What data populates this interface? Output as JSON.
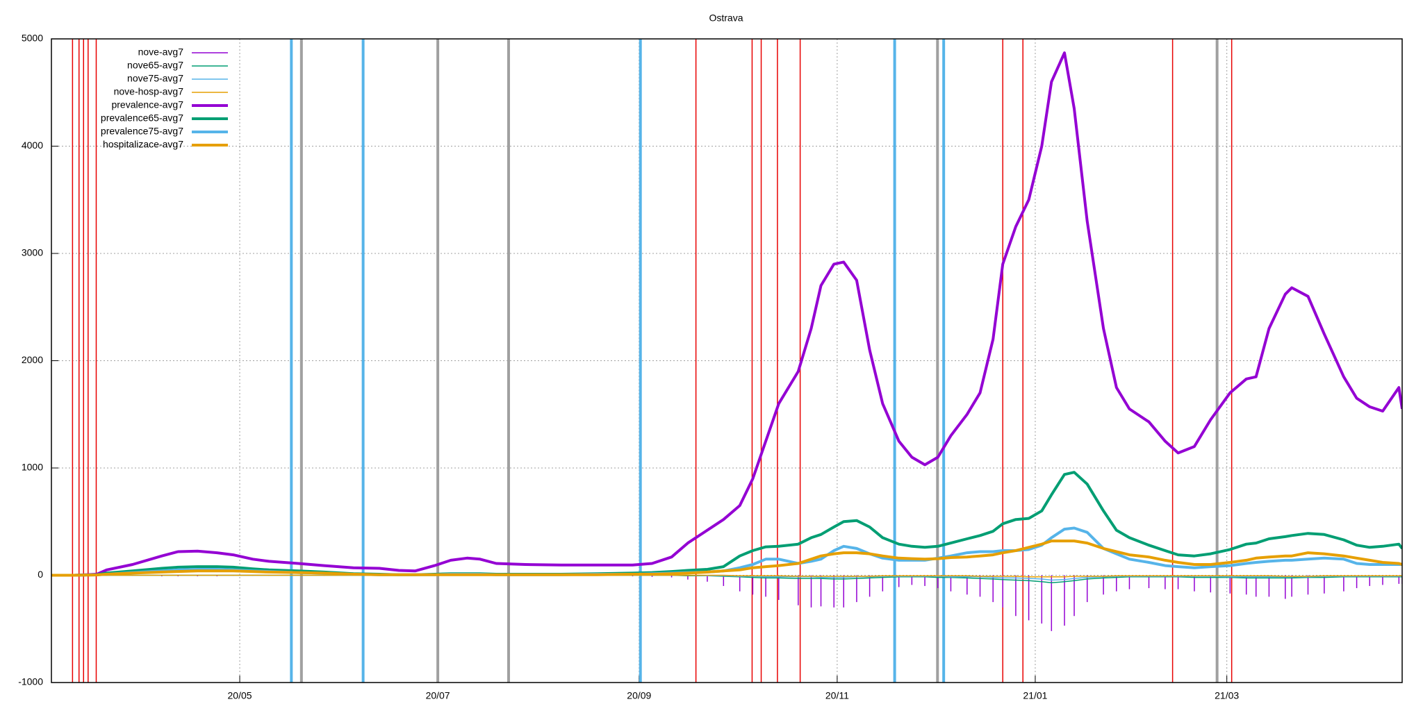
{
  "chart_data": {
    "type": "line",
    "title": "Ostrava",
    "xlim": [
      3,
      419
    ],
    "ylim": [
      -1000,
      5000
    ],
    "yticks": [
      -1000,
      0,
      1000,
      2000,
      3000,
      4000,
      5000
    ],
    "xticks": [
      {
        "value": 61,
        "label": "20/05"
      },
      {
        "value": 122,
        "label": "20/07"
      },
      {
        "value": 184,
        "label": "20/09"
      },
      {
        "value": 245,
        "label": "20/11"
      },
      {
        "value": 306,
        "label": "21/01"
      },
      {
        "value": 365,
        "label": "21/03"
      }
    ],
    "grid": true,
    "legend": "top-left",
    "x": [
      3,
      10,
      17,
      20,
      28,
      37,
      42,
      48,
      54,
      59,
      65,
      70,
      79,
      87,
      96,
      104,
      110,
      115,
      121,
      126,
      131,
      135,
      140,
      149,
      160,
      171,
      182,
      188,
      194,
      199,
      205,
      210,
      215,
      219,
      223,
      227,
      233,
      237,
      240,
      244,
      247,
      251,
      255,
      259,
      264,
      268,
      272,
      276,
      280,
      285,
      289,
      293,
      296,
      300,
      304,
      308,
      311,
      315,
      318,
      322,
      327,
      331,
      335,
      341,
      346,
      350,
      355,
      360,
      366,
      371,
      374,
      378,
      383,
      385,
      390,
      395,
      401,
      405,
      409,
      413,
      418,
      419
    ],
    "series": [
      {
        "name": "nove-avg7",
        "color": "#9400d3",
        "style": "impulses",
        "values": [
          0,
          0,
          0,
          -5,
          -5,
          -10,
          -10,
          -10,
          -10,
          -5,
          -5,
          -5,
          -5,
          -5,
          0,
          0,
          0,
          0,
          -5,
          -5,
          -5,
          -5,
          -5,
          -5,
          -5,
          -5,
          -10,
          -15,
          -20,
          -40,
          -60,
          -100,
          -150,
          -180,
          -200,
          -230,
          -280,
          -300,
          -290,
          -300,
          -300,
          -250,
          -200,
          -150,
          -110,
          -90,
          -100,
          -120,
          -150,
          -180,
          -200,
          -250,
          -300,
          -380,
          -420,
          -450,
          -520,
          -470,
          -380,
          -250,
          -180,
          -150,
          -130,
          -120,
          -130,
          -130,
          -150,
          -160,
          -170,
          -180,
          -200,
          -200,
          -220,
          -200,
          -180,
          -170,
          -150,
          -120,
          -100,
          -90,
          -80,
          -80
        ]
      },
      {
        "name": "nove65-avg7",
        "color": "#009e73",
        "style": "thin",
        "values": [
          0,
          0,
          0,
          0,
          0,
          0,
          0,
          0,
          0,
          0,
          0,
          0,
          0,
          0,
          0,
          0,
          0,
          0,
          0,
          0,
          0,
          0,
          0,
          0,
          0,
          0,
          0,
          0,
          0,
          -5,
          -5,
          -10,
          -15,
          -20,
          -25,
          -25,
          -30,
          -30,
          -30,
          -35,
          -35,
          -30,
          -25,
          -20,
          -15,
          -15,
          -15,
          -20,
          -20,
          -25,
          -30,
          -35,
          -40,
          -45,
          -50,
          -60,
          -70,
          -60,
          -50,
          -35,
          -25,
          -20,
          -15,
          -15,
          -15,
          -15,
          -20,
          -20,
          -20,
          -25,
          -25,
          -25,
          -25,
          -25,
          -20,
          -20,
          -15,
          -15,
          -15,
          -15,
          -15,
          -15
        ]
      },
      {
        "name": "nove75-avg7",
        "color": "#56b4e9",
        "style": "thin",
        "values": [
          0,
          0,
          0,
          0,
          0,
          0,
          0,
          0,
          0,
          0,
          0,
          0,
          0,
          0,
          0,
          0,
          0,
          0,
          0,
          0,
          0,
          0,
          0,
          0,
          0,
          0,
          0,
          0,
          0,
          0,
          -5,
          -5,
          -10,
          -10,
          -15,
          -15,
          -15,
          -15,
          -20,
          -20,
          -20,
          -15,
          -15,
          -10,
          -10,
          -10,
          -10,
          -10,
          -15,
          -15,
          -15,
          -20,
          -25,
          -25,
          -30,
          -35,
          -45,
          -40,
          -30,
          -20,
          -15,
          -10,
          -10,
          -10,
          -10,
          -10,
          -10,
          -10,
          -15,
          -15,
          -15,
          -15,
          -15,
          -15,
          -15,
          -10,
          -10,
          -10,
          -10,
          -10,
          -10,
          -10
        ]
      },
      {
        "name": "nove-hosp-avg7",
        "color": "#e69f00",
        "style": "thin",
        "values": [
          0,
          0,
          0,
          0,
          0,
          0,
          0,
          0,
          0,
          0,
          0,
          0,
          0,
          0,
          0,
          0,
          0,
          0,
          0,
          0,
          0,
          0,
          0,
          0,
          0,
          0,
          0,
          0,
          0,
          0,
          0,
          0,
          -5,
          -5,
          -5,
          -5,
          -10,
          -10,
          -10,
          -10,
          -10,
          -10,
          -10,
          -5,
          -5,
          -5,
          -5,
          -5,
          -5,
          -5,
          -10,
          -10,
          -10,
          -10,
          -15,
          -15,
          -15,
          -15,
          -10,
          -10,
          -10,
          -5,
          -5,
          -5,
          -5,
          -5,
          -5,
          -5,
          -5,
          -5,
          -5,
          -5,
          -10,
          -10,
          -10,
          -5,
          -5,
          -5,
          -5,
          -5,
          -5,
          -5
        ]
      },
      {
        "name": "prevalence-avg7",
        "color": "#9400d3",
        "style": "thick",
        "values": [
          0,
          0,
          10,
          50,
          100,
          180,
          220,
          225,
          210,
          190,
          150,
          130,
          110,
          90,
          70,
          65,
          45,
          40,
          90,
          140,
          160,
          150,
          110,
          100,
          95,
          95,
          95,
          110,
          170,
          300,
          420,
          520,
          650,
          900,
          1250,
          1600,
          1900,
          2300,
          2700,
          2900,
          2920,
          2750,
          2100,
          1600,
          1250,
          1100,
          1030,
          1100,
          1300,
          1500,
          1700,
          2200,
          2900,
          3250,
          3500,
          4000,
          4600,
          4870,
          4350,
          3300,
          2300,
          1750,
          1550,
          1430,
          1250,
          1140,
          1200,
          1450,
          1700,
          1830,
          1850,
          2300,
          2620,
          2680,
          2600,
          2250,
          1850,
          1650,
          1570,
          1530,
          1750,
          1550
        ]
      },
      {
        "name": "prevalence65-avg7",
        "color": "#009e73",
        "style": "thick",
        "values": [
          0,
          0,
          5,
          20,
          40,
          65,
          75,
          80,
          80,
          75,
          60,
          50,
          40,
          30,
          15,
          10,
          5,
          5,
          10,
          15,
          15,
          15,
          10,
          10,
          10,
          15,
          20,
          25,
          35,
          45,
          55,
          80,
          180,
          230,
          265,
          270,
          290,
          350,
          380,
          450,
          500,
          510,
          450,
          350,
          290,
          270,
          260,
          270,
          300,
          340,
          370,
          410,
          480,
          520,
          530,
          600,
          750,
          940,
          960,
          850,
          600,
          420,
          350,
          280,
          230,
          190,
          180,
          200,
          240,
          290,
          300,
          340,
          360,
          370,
          390,
          380,
          330,
          280,
          260,
          270,
          290,
          250
        ]
      },
      {
        "name": "prevalence75-avg7",
        "color": "#56b4e9",
        "style": "thick",
        "values": [
          0,
          0,
          3,
          10,
          25,
          40,
          50,
          55,
          55,
          50,
          40,
          35,
          25,
          20,
          10,
          5,
          5,
          5,
          5,
          10,
          10,
          10,
          5,
          5,
          5,
          10,
          10,
          15,
          20,
          25,
          30,
          40,
          70,
          100,
          150,
          150,
          110,
          130,
          150,
          230,
          270,
          250,
          200,
          160,
          140,
          140,
          140,
          160,
          180,
          210,
          220,
          220,
          230,
          230,
          240,
          280,
          350,
          430,
          440,
          400,
          250,
          200,
          150,
          120,
          90,
          80,
          70,
          80,
          90,
          110,
          120,
          130,
          140,
          140,
          150,
          160,
          150,
          110,
          100,
          100,
          100,
          100
        ]
      },
      {
        "name": "hospitalizace-avg7",
        "color": "#e69f00",
        "style": "thick",
        "values": [
          0,
          0,
          3,
          10,
          20,
          30,
          35,
          40,
          40,
          40,
          35,
          30,
          25,
          20,
          10,
          5,
          5,
          5,
          5,
          5,
          5,
          5,
          5,
          5,
          5,
          5,
          10,
          10,
          15,
          20,
          30,
          40,
          50,
          70,
          80,
          90,
          110,
          150,
          180,
          200,
          210,
          210,
          200,
          180,
          160,
          155,
          150,
          155,
          165,
          170,
          180,
          190,
          210,
          230,
          260,
          290,
          320,
          320,
          320,
          300,
          250,
          220,
          190,
          170,
          140,
          120,
          100,
          100,
          120,
          140,
          160,
          170,
          180,
          180,
          210,
          200,
          180,
          160,
          140,
          120,
          110,
          100
        ]
      }
    ],
    "vlines": [
      {
        "color": "#e80000",
        "thick": false,
        "x": [
          9.5,
          11.5,
          12.9,
          14.3,
          16.8,
          201.5,
          218.8,
          221.6,
          226.6,
          233.6,
          296,
          302.2,
          348.3,
          366.5
        ]
      },
      {
        "color": "#56b4e9",
        "thick": true,
        "x": [
          76.9,
          99,
          184.4,
          262.7,
          277.8
        ]
      },
      {
        "color": "#a0a0a0",
        "thick": true,
        "x": [
          80,
          122,
          143.8,
          275.9,
          362
        ]
      }
    ]
  }
}
